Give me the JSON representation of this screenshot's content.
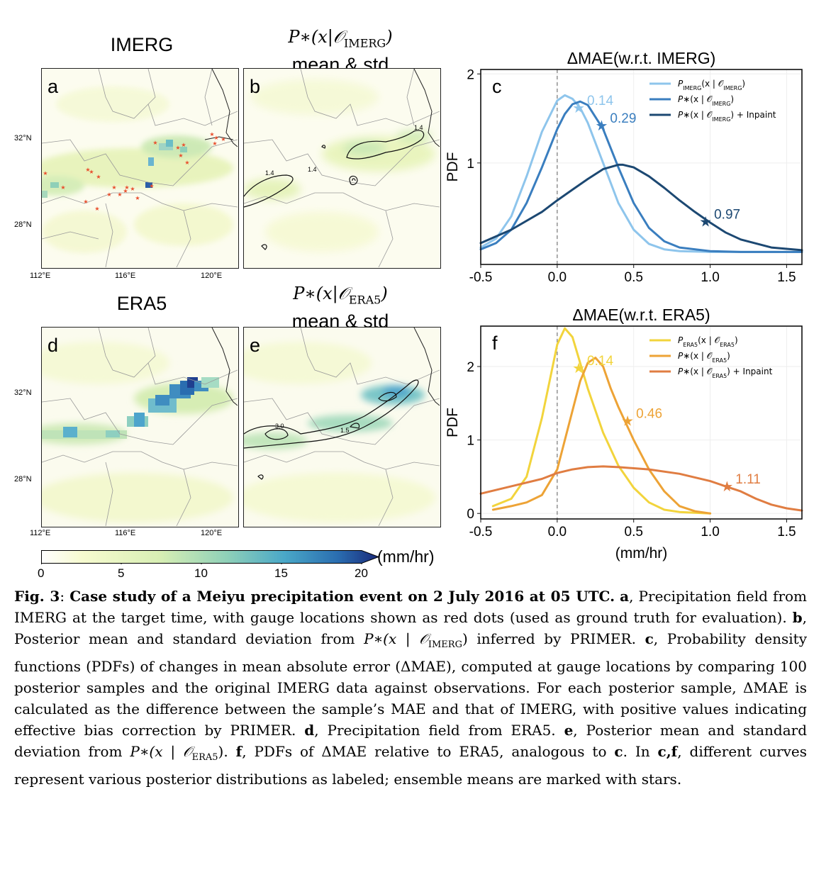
{
  "panels": {
    "a": {
      "title": "IMERG",
      "letter": "a"
    },
    "b": {
      "title_math": "P∗(x|𝒪",
      "title_sub": "IMERG",
      "title_close": ")",
      "title_line2": "mean & std",
      "letter": "b",
      "contour_labels": [
        "1.4",
        "1.4",
        "1.4"
      ]
    },
    "d": {
      "title": "ERA5",
      "letter": "d"
    },
    "e": {
      "title_math": "P∗(x|𝒪",
      "title_sub": "ERA5",
      "title_close": ")",
      "title_line2": "mean & std",
      "letter": "e",
      "contour_labels": [
        "3.0",
        "1.5"
      ]
    },
    "map_lat_labels": [
      "32°N",
      "28°N"
    ],
    "map_lon_labels": [
      "112°E",
      "116°E",
      "120°E"
    ]
  },
  "colorbar": {
    "ticks": [
      "0",
      "5",
      "10",
      "15",
      "20"
    ],
    "unit": "(mm/hr)",
    "colors": [
      "#ffffff",
      "#f7fbd0",
      "#d8efb4",
      "#8fd0b8",
      "#4aa8c8",
      "#2a6db0",
      "#1a2a7a"
    ]
  },
  "chart_data": [
    {
      "panel": "c",
      "type": "line",
      "title": "ΔMAE(w.r.t. IMERG)",
      "ylabel": "PDF",
      "xlabel": "",
      "xlim": [
        -0.5,
        1.6
      ],
      "ylim": [
        0,
        2
      ],
      "xticks": [
        "-0.5",
        "0.0",
        "0.5",
        "1.0",
        "1.5"
      ],
      "yticks": [
        "1",
        "2"
      ],
      "series": [
        {
          "name": "P_IMERG(x | 𝒪_IMERG)",
          "label_main": "P",
          "label_sub": "IMERG",
          "label_rest": "(x | 𝒪",
          "label_sub2": "IMERG",
          "label_close": ")",
          "color": "#8ec5ec",
          "x": [
            -0.5,
            -0.4,
            -0.3,
            -0.2,
            -0.1,
            0.0,
            0.05,
            0.1,
            0.15,
            0.2,
            0.3,
            0.4,
            0.5,
            0.6,
            0.7,
            0.8,
            1.0,
            1.2,
            1.6
          ],
          "y": [
            0.05,
            0.15,
            0.4,
            0.85,
            1.35,
            1.7,
            1.76,
            1.72,
            1.62,
            1.45,
            1.0,
            0.55,
            0.25,
            0.09,
            0.03,
            0.01,
            0.0,
            0.0,
            0.0
          ],
          "mean": 0.14,
          "mean_y": 1.62,
          "mean_label": "0.14"
        },
        {
          "name": "P∗(x | 𝒪_IMERG)",
          "label_main": "P∗",
          "label_sub": "",
          "label_rest": "(x | 𝒪",
          "label_sub2": "IMERG",
          "label_close": ")",
          "color": "#3a7ebf",
          "x": [
            -0.5,
            -0.4,
            -0.3,
            -0.2,
            -0.1,
            0.0,
            0.05,
            0.1,
            0.15,
            0.2,
            0.3,
            0.4,
            0.5,
            0.6,
            0.7,
            0.8,
            1.0,
            1.2,
            1.6
          ],
          "y": [
            0.03,
            0.1,
            0.25,
            0.55,
            0.95,
            1.38,
            1.55,
            1.66,
            1.69,
            1.65,
            1.38,
            0.95,
            0.55,
            0.27,
            0.12,
            0.05,
            0.01,
            0.0,
            0.0
          ],
          "mean": 0.29,
          "mean_y": 1.42,
          "mean_label": "0.29"
        },
        {
          "name": "P∗(x | 𝒪_IMERG) + Inpaint",
          "label_main": "P∗",
          "label_sub": "",
          "label_rest": "(x | 𝒪",
          "label_sub2": "IMERG",
          "label_close": ") + Inpaint",
          "color": "#1c4872",
          "x": [
            -0.5,
            -0.3,
            -0.1,
            0.0,
            0.1,
            0.2,
            0.3,
            0.4,
            0.43,
            0.5,
            0.6,
            0.7,
            0.8,
            0.9,
            1.0,
            1.1,
            1.2,
            1.4,
            1.6
          ],
          "y": [
            0.1,
            0.25,
            0.45,
            0.58,
            0.7,
            0.82,
            0.93,
            0.98,
            0.98,
            0.95,
            0.85,
            0.72,
            0.58,
            0.45,
            0.33,
            0.22,
            0.14,
            0.05,
            0.02
          ],
          "mean": 0.97,
          "mean_y": 0.34,
          "mean_label": "0.97"
        }
      ]
    },
    {
      "panel": "f",
      "type": "line",
      "title": "ΔMAE(w.r.t. ERA5)",
      "ylabel": "PDF",
      "xlabel": "(mm/hr)",
      "xlim": [
        -0.5,
        1.6
      ],
      "ylim": [
        0,
        2.5
      ],
      "xticks": [
        "-0.5",
        "0.0",
        "0.5",
        "1.0",
        "1.5"
      ],
      "yticks": [
        "0",
        "1",
        "2"
      ],
      "series": [
        {
          "name": "P_ERA5(x | 𝒪_ERA5)",
          "label_main": "P",
          "label_sub": "ERA5",
          "label_rest": "(x | 𝒪",
          "label_sub2": "ERA5",
          "label_close": ")",
          "color": "#f2d43c",
          "x": [
            -0.42,
            -0.3,
            -0.2,
            -0.1,
            0.0,
            0.05,
            0.1,
            0.15,
            0.2,
            0.3,
            0.4,
            0.5,
            0.6,
            0.7,
            0.8,
            1.0
          ],
          "y": [
            0.1,
            0.2,
            0.5,
            1.3,
            2.3,
            2.52,
            2.4,
            2.05,
            1.7,
            1.1,
            0.65,
            0.35,
            0.15,
            0.05,
            0.02,
            0.0
          ],
          "mean": 0.14,
          "mean_y": 1.98,
          "mean_label": "0.14"
        },
        {
          "name": "P∗(x | 𝒪_ERA5)",
          "label_main": "P∗",
          "label_sub": "",
          "label_rest": "(x | 𝒪",
          "label_sub2": "ERA5",
          "label_close": ")",
          "color": "#eda336",
          "x": [
            -0.42,
            -0.3,
            -0.2,
            -0.1,
            0.0,
            0.1,
            0.15,
            0.2,
            0.25,
            0.3,
            0.35,
            0.4,
            0.5,
            0.6,
            0.7,
            0.8,
            0.9,
            1.0
          ],
          "y": [
            0.05,
            0.1,
            0.15,
            0.25,
            0.6,
            1.4,
            1.8,
            2.05,
            2.12,
            2.0,
            1.7,
            1.45,
            1.0,
            0.6,
            0.3,
            0.1,
            0.03,
            0.0
          ],
          "mean": 0.46,
          "mean_y": 1.26,
          "mean_label": "0.46"
        },
        {
          "name": "P∗(x | 𝒪_ERA5) + Inpaint",
          "label_main": "P∗",
          "label_sub": "",
          "label_rest": "(x | 𝒪",
          "label_sub2": "ERA5",
          "label_close": ") + Inpaint",
          "color": "#e07d42",
          "x": [
            -0.5,
            -0.3,
            -0.1,
            0.0,
            0.1,
            0.2,
            0.3,
            0.4,
            0.6,
            0.8,
            1.0,
            1.1,
            1.2,
            1.3,
            1.4,
            1.5,
            1.6
          ],
          "y": [
            0.27,
            0.37,
            0.47,
            0.55,
            0.6,
            0.63,
            0.64,
            0.63,
            0.6,
            0.54,
            0.44,
            0.37,
            0.3,
            0.2,
            0.12,
            0.07,
            0.04
          ],
          "mean": 1.11,
          "mean_y": 0.37,
          "mean_label": "1.11"
        }
      ]
    }
  ],
  "caption": {
    "fig": "Fig. 3",
    "colon": ": ",
    "title": "Case study of a Meiyu precipitation event on 2 July 2016 at 05 UTC.",
    "a_lbl": "a",
    "a_txt": ", Precipitation field from IMERG at the target time, with gauge locations shown as red dots (used as ground truth for evaluation). ",
    "b_lbl": "b",
    "b_txt1": ", Posterior mean and standard deviation from ",
    "b_math": "P∗(x | 𝒪",
    "b_sub": "IMERG",
    "b_txt2": ") inferred by PRIMER. ",
    "c_lbl": "c",
    "c_txt": ", Probability density functions (PDFs) of changes in mean absolute error (ΔMAE), computed at gauge locations by comparing 100 posterior samples and the original IMERG data against observations. For each posterior sample, ΔMAE is calculated as the difference between the sample’s MAE and that of IMERG, with positive values indicating effective bias correction by PRIMER. ",
    "d_lbl": "d",
    "d_txt": ", Precipitation field from ERA5. ",
    "e_lbl": "e",
    "e_txt1": ", Posterior mean and standard deviation from ",
    "e_math": "P∗(x | 𝒪",
    "e_sub": "ERA5",
    "e_txt2": "). ",
    "f_lbl": "f",
    "f_txt1": ", PDFs of ΔMAE relative to ERA5, analogous to ",
    "f_c": "c",
    "f_txt2": ". In ",
    "f_cf": "c,f",
    "f_txt3": ", different curves represent various posterior distributions as labeled; ensemble means are marked with stars."
  }
}
